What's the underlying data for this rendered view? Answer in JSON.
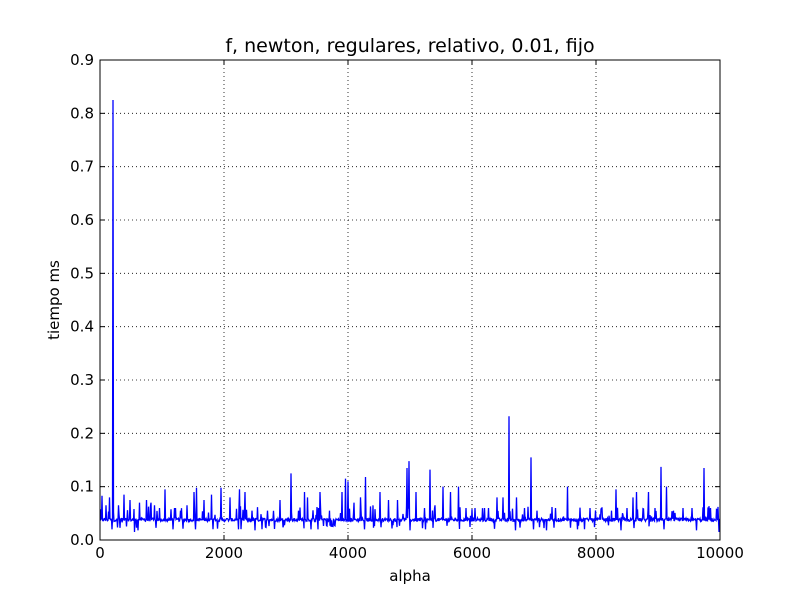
{
  "chart_data": {
    "type": "line",
    "title": "f, newton, regulares, relativo, 0.01, fijo",
    "xlabel": "alpha",
    "ylabel": "tiempo ms",
    "xlim": [
      0,
      10000
    ],
    "ylim": [
      0,
      0.9
    ],
    "xticks": [
      0,
      2000,
      4000,
      6000,
      8000,
      10000
    ],
    "xtick_labels": [
      "0",
      "2000",
      "4000",
      "6000",
      "8000",
      "10000"
    ],
    "yticks": [
      0.0,
      0.1,
      0.2,
      0.3,
      0.4,
      0.5,
      0.6,
      0.7,
      0.8,
      0.9
    ],
    "ytick_labels": [
      "0.0",
      "0.1",
      "0.2",
      "0.3",
      "0.4",
      "0.5",
      "0.6",
      "0.7",
      "0.8",
      "0.9"
    ],
    "grid": true,
    "line_color": "#0000ff",
    "series": [
      {
        "baseline": 0.038,
        "n_points": 10000,
        "peaks": [
          {
            "x": 30,
            "y": 0.083
          },
          {
            "x": 100,
            "y": 0.065
          },
          {
            "x": 150,
            "y": 0.08
          },
          {
            "x": 210,
            "y": 0.825
          },
          {
            "x": 300,
            "y": 0.065
          },
          {
            "x": 390,
            "y": 0.085
          },
          {
            "x": 480,
            "y": 0.075
          },
          {
            "x": 560,
            "y": 0.06
          },
          {
            "x": 640,
            "y": 0.07
          },
          {
            "x": 750,
            "y": 0.075
          },
          {
            "x": 820,
            "y": 0.07
          },
          {
            "x": 880,
            "y": 0.065
          },
          {
            "x": 960,
            "y": 0.06
          },
          {
            "x": 1050,
            "y": 0.095
          },
          {
            "x": 1200,
            "y": 0.06
          },
          {
            "x": 1300,
            "y": 0.055
          },
          {
            "x": 1400,
            "y": 0.065
          },
          {
            "x": 1520,
            "y": 0.09
          },
          {
            "x": 1560,
            "y": 0.098
          },
          {
            "x": 1680,
            "y": 0.075
          },
          {
            "x": 1800,
            "y": 0.085
          },
          {
            "x": 1950,
            "y": 0.098
          },
          {
            "x": 2100,
            "y": 0.08
          },
          {
            "x": 2250,
            "y": 0.095
          },
          {
            "x": 2340,
            "y": 0.09
          },
          {
            "x": 2450,
            "y": 0.055
          },
          {
            "x": 2700,
            "y": 0.055
          },
          {
            "x": 2900,
            "y": 0.075
          },
          {
            "x": 3080,
            "y": 0.125
          },
          {
            "x": 3200,
            "y": 0.055
          },
          {
            "x": 3300,
            "y": 0.09
          },
          {
            "x": 3350,
            "y": 0.08
          },
          {
            "x": 3550,
            "y": 0.09
          },
          {
            "x": 3700,
            "y": 0.055
          },
          {
            "x": 3900,
            "y": 0.09
          },
          {
            "x": 3960,
            "y": 0.115
          },
          {
            "x": 4000,
            "y": 0.11
          },
          {
            "x": 4100,
            "y": 0.07
          },
          {
            "x": 4200,
            "y": 0.08
          },
          {
            "x": 4280,
            "y": 0.118
          },
          {
            "x": 4400,
            "y": 0.065
          },
          {
            "x": 4520,
            "y": 0.09
          },
          {
            "x": 4650,
            "y": 0.075
          },
          {
            "x": 4800,
            "y": 0.075
          },
          {
            "x": 4950,
            "y": 0.135
          },
          {
            "x": 4980,
            "y": 0.148
          },
          {
            "x": 5100,
            "y": 0.09
          },
          {
            "x": 5230,
            "y": 0.06
          },
          {
            "x": 5320,
            "y": 0.132
          },
          {
            "x": 5400,
            "y": 0.065
          },
          {
            "x": 5530,
            "y": 0.1
          },
          {
            "x": 5650,
            "y": 0.09
          },
          {
            "x": 5780,
            "y": 0.1
          },
          {
            "x": 5900,
            "y": 0.06
          },
          {
            "x": 6050,
            "y": 0.06
          },
          {
            "x": 6200,
            "y": 0.06
          },
          {
            "x": 6400,
            "y": 0.08
          },
          {
            "x": 6500,
            "y": 0.08
          },
          {
            "x": 6600,
            "y": 0.232
          },
          {
            "x": 6720,
            "y": 0.08
          },
          {
            "x": 6850,
            "y": 0.06
          },
          {
            "x": 6950,
            "y": 0.155
          },
          {
            "x": 7050,
            "y": 0.055
          },
          {
            "x": 7200,
            "y": 0.07
          },
          {
            "x": 7350,
            "y": 0.06
          },
          {
            "x": 7540,
            "y": 0.1
          },
          {
            "x": 7700,
            "y": 0.075
          },
          {
            "x": 7900,
            "y": 0.06
          },
          {
            "x": 8100,
            "y": 0.06
          },
          {
            "x": 8250,
            "y": 0.055
          },
          {
            "x": 8320,
            "y": 0.095
          },
          {
            "x": 8500,
            "y": 0.06
          },
          {
            "x": 8600,
            "y": 0.08
          },
          {
            "x": 8650,
            "y": 0.09
          },
          {
            "x": 8850,
            "y": 0.09
          },
          {
            "x": 8950,
            "y": 0.06
          },
          {
            "x": 9050,
            "y": 0.137
          },
          {
            "x": 9140,
            "y": 0.1
          },
          {
            "x": 9250,
            "y": 0.055
          },
          {
            "x": 9400,
            "y": 0.06
          },
          {
            "x": 9550,
            "y": 0.06
          },
          {
            "x": 9740,
            "y": 0.135
          },
          {
            "x": 9850,
            "y": 0.06
          },
          {
            "x": 9950,
            "y": 0.057
          }
        ],
        "dips": [
          {
            "x": 190,
            "y": 0.02
          },
          {
            "x": 560,
            "y": 0.015
          },
          {
            "x": 610,
            "y": 0.018
          },
          {
            "x": 1180,
            "y": 0.02
          },
          {
            "x": 1540,
            "y": 0.02
          },
          {
            "x": 2230,
            "y": 0.02
          },
          {
            "x": 2500,
            "y": 0.018
          },
          {
            "x": 3400,
            "y": 0.02
          },
          {
            "x": 3520,
            "y": 0.02
          },
          {
            "x": 3790,
            "y": 0.018
          },
          {
            "x": 4270,
            "y": 0.02
          },
          {
            "x": 5000,
            "y": 0.018
          },
          {
            "x": 5250,
            "y": 0.02
          },
          {
            "x": 6700,
            "y": 0.018
          },
          {
            "x": 6990,
            "y": 0.02
          },
          {
            "x": 7200,
            "y": 0.018
          },
          {
            "x": 7700,
            "y": 0.02
          },
          {
            "x": 8400,
            "y": 0.018
          },
          {
            "x": 9100,
            "y": 0.02
          },
          {
            "x": 9620,
            "y": 0.018
          },
          {
            "x": 9980,
            "y": 0.015
          }
        ],
        "flat_dips": [
          {
            "x0": 3650,
            "x1": 3800,
            "y": 0.022
          }
        ]
      }
    ]
  }
}
